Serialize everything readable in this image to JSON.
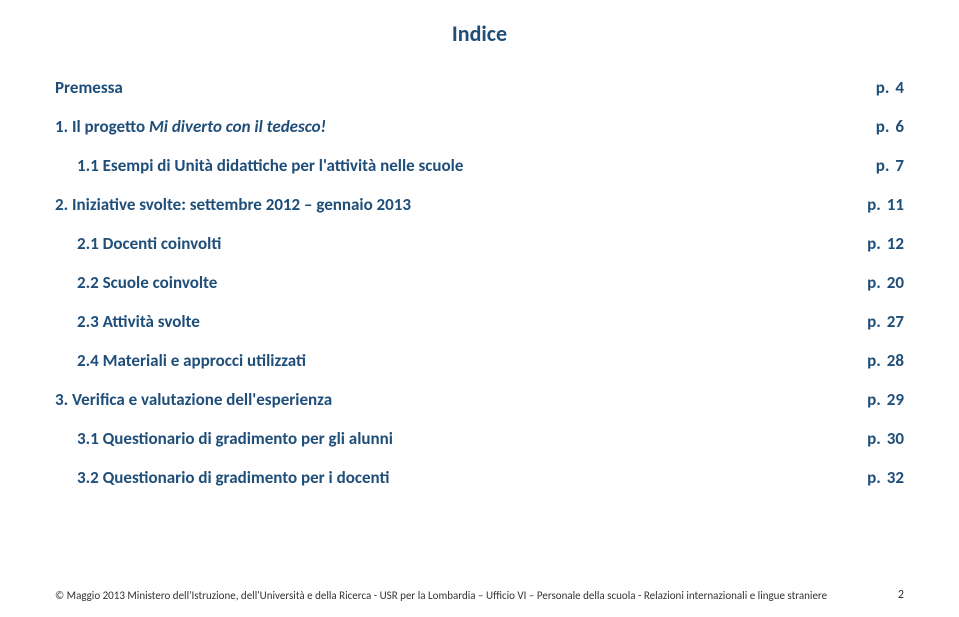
{
  "title": "Indice",
  "colors": {
    "heading": "#1f4e79",
    "background": "#ffffff",
    "footer_text": "#333333"
  },
  "typography": {
    "title_fontsize": 22,
    "entry_fontsize": 17,
    "footer_fontsize": 11,
    "font_family": "Calibri"
  },
  "entries": [
    {
      "label_prefix": "Premessa",
      "label_italic": "",
      "label_suffix": "",
      "page": "4",
      "indent": 0
    },
    {
      "label_prefix": "1. Il progetto ",
      "label_italic": "Mi diverto con il tedesco!",
      "label_suffix": "",
      "page": "6",
      "indent": 0
    },
    {
      "label_prefix": "1.1 Esempi di Unità didattiche per l'attività nelle scuole",
      "label_italic": "",
      "label_suffix": "",
      "page": "7",
      "indent": 1
    },
    {
      "label_prefix": "2. Iniziative svolte: settembre 2012 – gennaio 2013",
      "label_italic": "",
      "label_suffix": "",
      "page": "11",
      "indent": 0
    },
    {
      "label_prefix": "2.1 Docenti coinvolti",
      "label_italic": "",
      "label_suffix": "",
      "page": "12",
      "indent": 1
    },
    {
      "label_prefix": "2.2 Scuole coinvolte",
      "label_italic": "",
      "label_suffix": "",
      "page": "20",
      "indent": 1
    },
    {
      "label_prefix": "2.3 Attività svolte",
      "label_italic": "",
      "label_suffix": "",
      "page": "27",
      "indent": 1
    },
    {
      "label_prefix": "2.4 Materiali  e approcci utilizzati",
      "label_italic": "",
      "label_suffix": "",
      "page": "28",
      "indent": 1
    },
    {
      "label_prefix": "3. Verifica e valutazione dell'esperienza",
      "label_italic": "",
      "label_suffix": "",
      "page": "29",
      "indent": 0
    },
    {
      "label_prefix": "3.1 Questionario di gradimento per gli  alunni",
      "label_italic": "",
      "label_suffix": "",
      "page": "30",
      "indent": 1
    },
    {
      "label_prefix": "3.2 Questionario di gradimento per i docenti",
      "label_italic": "",
      "label_suffix": "",
      "page": "32",
      "indent": 1
    }
  ],
  "page_prefix": "p.",
  "footer": {
    "text": "© Maggio 2013 Ministero dell'Istruzione, dell'Università e della Ricerca - USR per la Lombardia – Ufficio VI – Personale della scuola - Relazioni internazionali e lingue straniere",
    "page_number": "2"
  }
}
